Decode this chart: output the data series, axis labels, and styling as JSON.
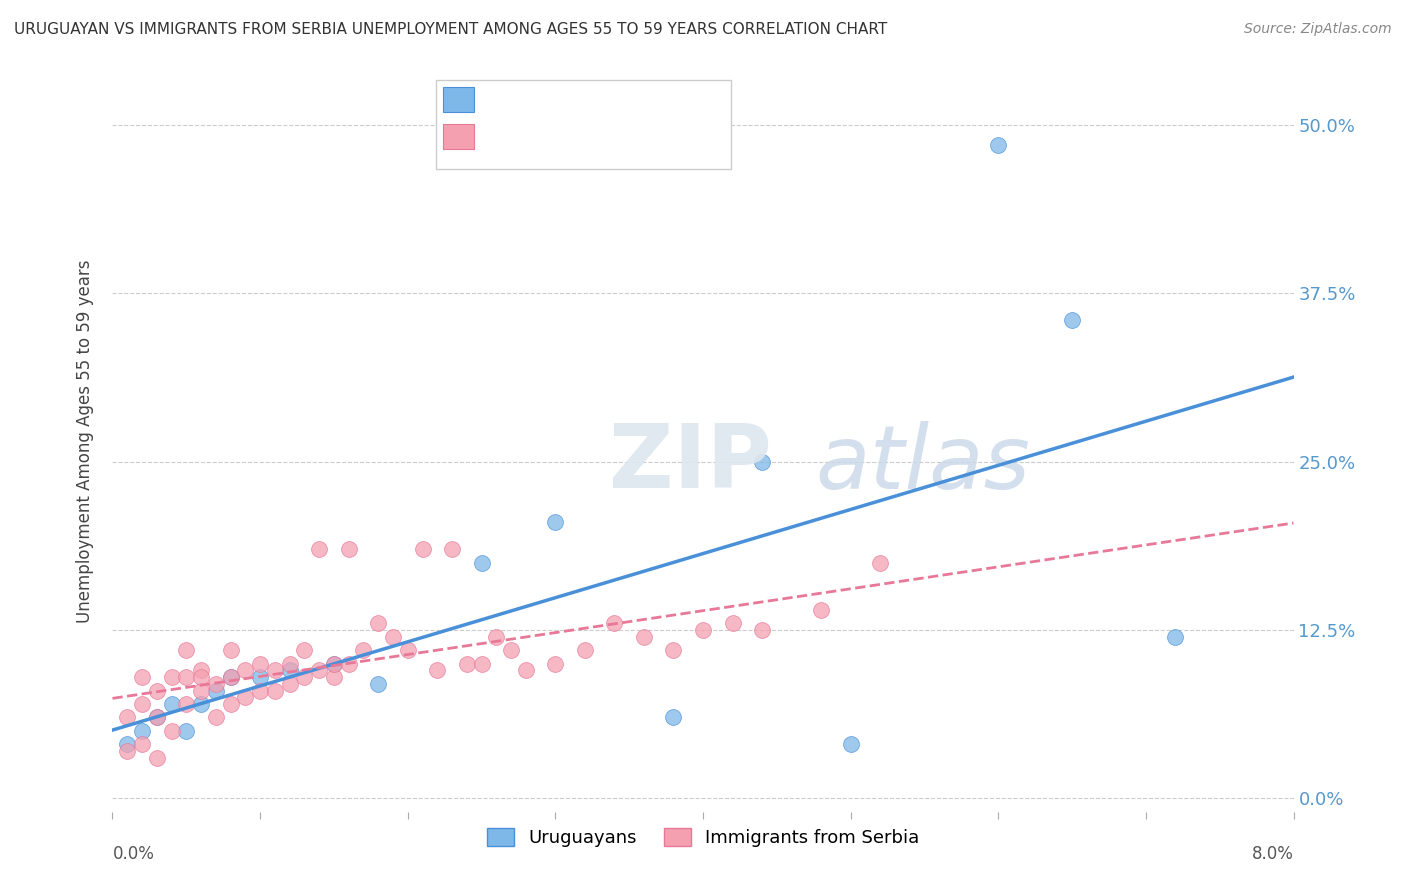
{
  "title": "URUGUAYAN VS IMMIGRANTS FROM SERBIA UNEMPLOYMENT AMONG AGES 55 TO 59 YEARS CORRELATION CHART",
  "source": "Source: ZipAtlas.com",
  "ylabel": "Unemployment Among Ages 55 to 59 years",
  "ytick_labels": [
    "0.0%",
    "12.5%",
    "25.0%",
    "37.5%",
    "50.0%"
  ],
  "ytick_values": [
    0.0,
    0.125,
    0.25,
    0.375,
    0.5
  ],
  "xmin": 0.0,
  "xmax": 0.08,
  "ymin": -0.01,
  "ymax": 0.54,
  "uruguayan_color": "#7EB8E8",
  "serbia_color": "#F4A0B0",
  "trend_blue_color": "#4A90D9",
  "trend_pink_color": "#E87898",
  "uru_scatter_x": [
    0.001,
    0.002,
    0.003,
    0.004,
    0.005,
    0.006,
    0.007,
    0.008,
    0.01,
    0.012,
    0.015,
    0.018,
    0.025,
    0.03,
    0.038,
    0.044,
    0.05,
    0.06,
    0.065,
    0.072
  ],
  "uru_scatter_y": [
    0.04,
    0.05,
    0.06,
    0.07,
    0.05,
    0.07,
    0.08,
    0.09,
    0.09,
    0.095,
    0.1,
    0.085,
    0.175,
    0.205,
    0.06,
    0.25,
    0.04,
    0.485,
    0.355,
    0.12
  ],
  "ser_scatter_x": [
    0.001,
    0.001,
    0.002,
    0.002,
    0.002,
    0.003,
    0.003,
    0.003,
    0.004,
    0.004,
    0.005,
    0.005,
    0.005,
    0.006,
    0.006,
    0.006,
    0.007,
    0.007,
    0.008,
    0.008,
    0.008,
    0.009,
    0.009,
    0.01,
    0.01,
    0.011,
    0.011,
    0.012,
    0.012,
    0.013,
    0.013,
    0.014,
    0.014,
    0.015,
    0.015,
    0.016,
    0.016,
    0.017,
    0.018,
    0.019,
    0.02,
    0.021,
    0.022,
    0.023,
    0.024,
    0.025,
    0.026,
    0.027,
    0.028,
    0.03,
    0.032,
    0.034,
    0.036,
    0.038,
    0.04,
    0.042,
    0.044,
    0.048,
    0.052
  ],
  "ser_scatter_y": [
    0.035,
    0.06,
    0.04,
    0.07,
    0.09,
    0.03,
    0.06,
    0.08,
    0.05,
    0.09,
    0.07,
    0.09,
    0.11,
    0.08,
    0.095,
    0.09,
    0.06,
    0.085,
    0.07,
    0.09,
    0.11,
    0.095,
    0.075,
    0.08,
    0.1,
    0.08,
    0.095,
    0.085,
    0.1,
    0.09,
    0.11,
    0.095,
    0.185,
    0.09,
    0.1,
    0.1,
    0.185,
    0.11,
    0.13,
    0.12,
    0.11,
    0.185,
    0.095,
    0.185,
    0.1,
    0.1,
    0.12,
    0.11,
    0.095,
    0.1,
    0.11,
    0.13,
    0.12,
    0.11,
    0.125,
    0.13,
    0.125,
    0.14,
    0.175
  ]
}
